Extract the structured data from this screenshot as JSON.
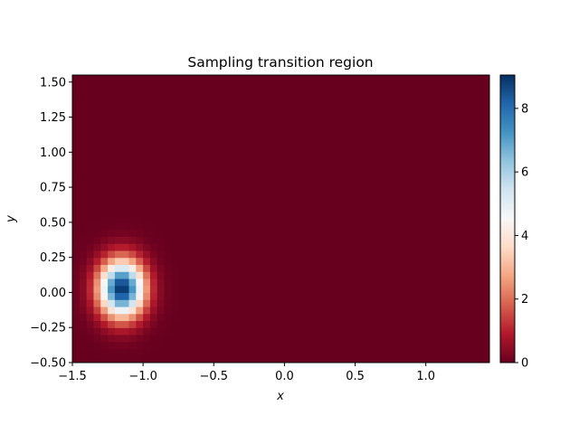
{
  "chart_data": {
    "type": "heatmap",
    "title": "Sampling transition region",
    "xlabel": "x",
    "ylabel": "y",
    "xlim": [
      -1.5,
      1.45
    ],
    "ylim": [
      -0.5,
      1.55
    ],
    "x_ticks": [
      {
        "value": -1.5,
        "label": "−1.5"
      },
      {
        "value": -1.0,
        "label": "−1.0"
      },
      {
        "value": -0.5,
        "label": "−0.5"
      },
      {
        "value": 0.0,
        "label": "0.0"
      },
      {
        "value": 0.5,
        "label": "0.5"
      },
      {
        "value": 1.0,
        "label": "1.0"
      }
    ],
    "y_ticks": [
      {
        "value": -0.5,
        "label": "−0.50"
      },
      {
        "value": -0.25,
        "label": "−0.25"
      },
      {
        "value": 0.0,
        "label": "0.00"
      },
      {
        "value": 0.25,
        "label": "0.25"
      },
      {
        "value": 0.5,
        "label": "0.50"
      },
      {
        "value": 0.75,
        "label": "0.75"
      },
      {
        "value": 1.0,
        "label": "1.00"
      },
      {
        "value": 1.25,
        "label": "1.25"
      },
      {
        "value": 1.5,
        "label": "1.50"
      }
    ],
    "grid": false,
    "colormap": "RdBu",
    "colormap_stops": [
      "#67001f",
      "#b2182b",
      "#d6604d",
      "#f4a582",
      "#fddbc7",
      "#f7f7f7",
      "#d1e5f0",
      "#92c5de",
      "#4393c3",
      "#2166ac",
      "#053061"
    ],
    "colorbar": {
      "range": [
        0,
        9.05
      ],
      "ticks": [
        {
          "value": 0,
          "label": "0"
        },
        {
          "value": 2,
          "label": "2"
        },
        {
          "value": 4,
          "label": "4"
        },
        {
          "value": 6,
          "label": "6"
        },
        {
          "value": 8,
          "label": "8"
        }
      ]
    },
    "grid_shape": {
      "nx": 59,
      "ny": 41
    },
    "field": {
      "type": "gaussian_peak",
      "center": [
        -1.15,
        0.03
      ],
      "peak": 9.05,
      "sigma_x": 0.11,
      "sigma_y": 0.14
    }
  }
}
